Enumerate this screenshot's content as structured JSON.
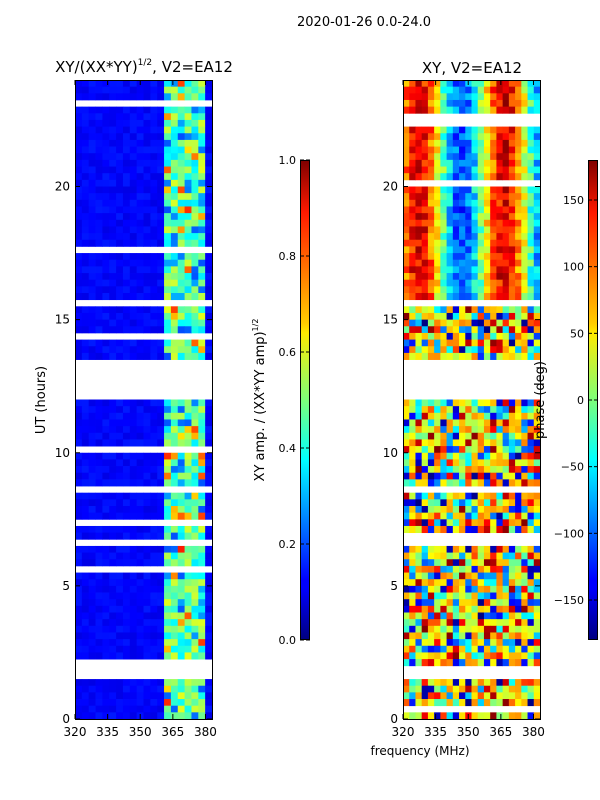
{
  "suptitle": "2020-01-26 0.0-24.0",
  "panels": [
    {
      "id": "amp",
      "title_main": "XY/(XX*YY)",
      "title_sup": "1/2",
      "title_tail": ", V2=EA12"
    },
    {
      "id": "phase",
      "title": "XY, V2=EA12"
    }
  ],
  "shared": {
    "xlabel": "frequency (MHz)",
    "ylabel": "UT (hours)"
  },
  "colorbars": {
    "amp": {
      "label_main": "XY amp. / (XX*YY amp)",
      "label_sup": "1/2",
      "ticks": [
        "0.0",
        "0.2",
        "0.4",
        "0.6",
        "0.8",
        "1.0"
      ],
      "range": [
        0,
        1
      ]
    },
    "phase": {
      "label": "phase (deg)",
      "ticks": [
        "−150",
        "−100",
        "−50",
        "0",
        "50",
        "100",
        "150"
      ],
      "range": [
        -180,
        180
      ]
    }
  },
  "chart_data": [
    {
      "type": "heatmap",
      "title": "XY/(XX*YY)^1/2, V2=EA12",
      "xlabel": "frequency (MHz)",
      "ylabel": "UT (hours)",
      "xlim": [
        320,
        383
      ],
      "ylim": [
        0,
        24
      ],
      "xticks": [
        320,
        335,
        350,
        365,
        380
      ],
      "yticks": [
        0,
        5,
        10,
        15,
        20
      ],
      "value": "XY amplitude normalized by (XX*YY)^1/2",
      "color_range": [
        0,
        1
      ],
      "colormap": "jet",
      "bright_band_mhz": [
        360,
        381
      ],
      "gap_hours": [
        [
          12.1,
          13.5
        ],
        [
          15.4,
          15.8
        ],
        [
          8.6,
          8.85
        ],
        [
          6.55,
          6.75
        ],
        [
          1.6,
          2.1
        ]
      ]
    },
    {
      "type": "heatmap",
      "title": "XY, V2=EA12",
      "xlabel": "frequency (MHz)",
      "xlim": [
        320,
        383
      ],
      "ylim": [
        0,
        24
      ],
      "xticks": [
        320,
        335,
        350,
        365,
        380
      ],
      "yticks": [
        0,
        5,
        10,
        15,
        20
      ],
      "value": "XY phase (deg)",
      "color_range": [
        -180,
        180
      ],
      "colormap": "jet",
      "gap_hours": [
        [
          12.1,
          13.5
        ],
        [
          15.4,
          15.8
        ],
        [
          8.6,
          8.85
        ],
        [
          6.55,
          6.75
        ],
        [
          1.6,
          2.1
        ]
      ]
    }
  ]
}
